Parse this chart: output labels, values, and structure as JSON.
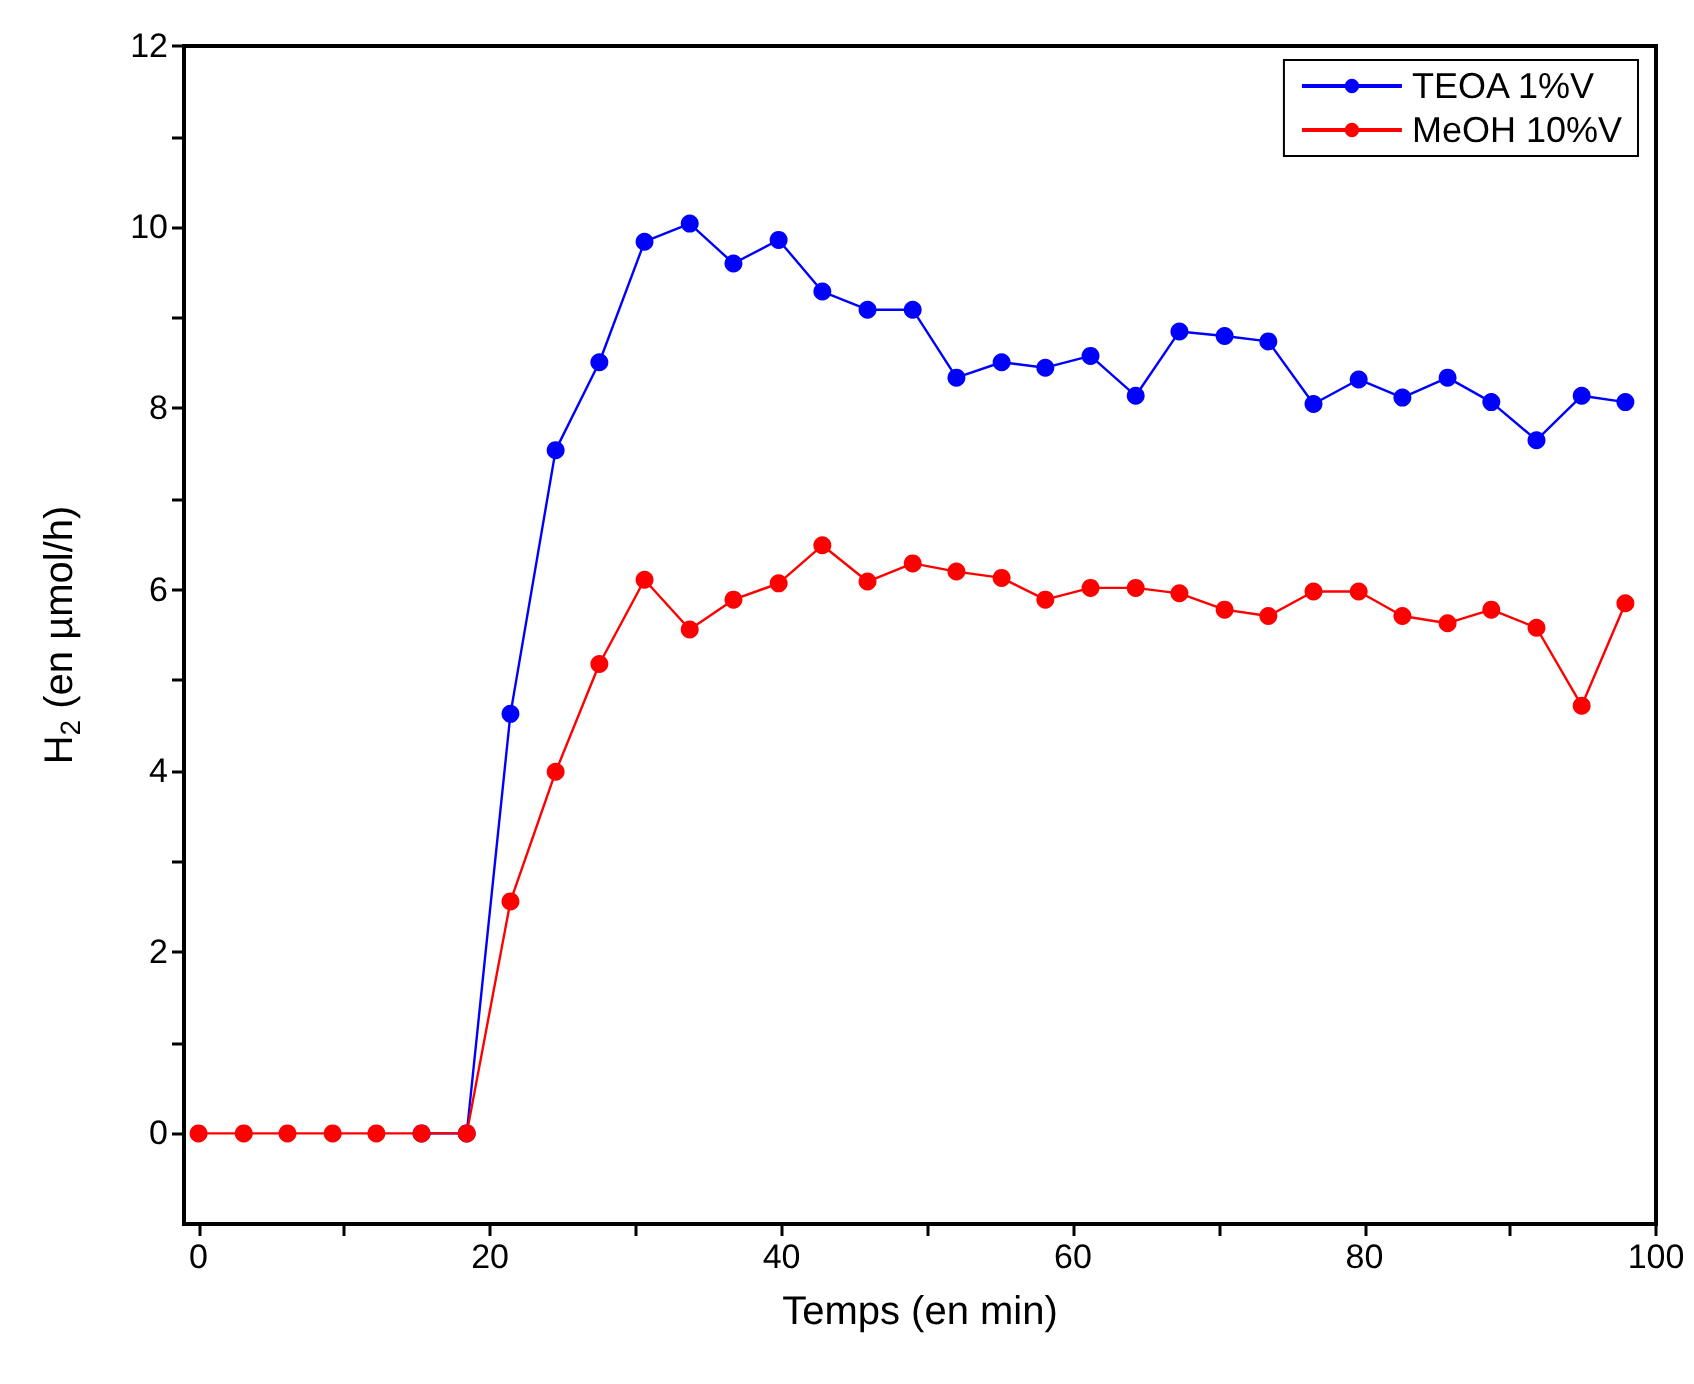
{
  "chart_data": {
    "type": "line",
    "xlabel": "Temps (en min)",
    "ylabel": "H$_{2}$ (en µmol/h)",
    "x": [
      0,
      3.1,
      6.1,
      9.2,
      12.2,
      15.3,
      18.4,
      21.4,
      24.5,
      27.5,
      30.6,
      33.7,
      36.7,
      39.8,
      42.8,
      45.9,
      49.0,
      52.0,
      55.1,
      58.1,
      61.2,
      64.3,
      67.3,
      70.4,
      73.4,
      76.5,
      79.6,
      82.6,
      85.7,
      88.7,
      91.8,
      94.9,
      97.9
    ],
    "series": [
      {
        "name": "TEOA 1%V",
        "color": "#0000ff",
        "values": [
          null,
          null,
          null,
          null,
          null,
          0,
          0,
          4.63,
          7.54,
          8.51,
          9.84,
          10.04,
          9.6,
          9.86,
          9.29,
          9.09,
          9.09,
          8.34,
          8.51,
          8.45,
          8.58,
          8.14,
          8.85,
          8.8,
          8.74,
          8.05,
          8.32,
          8.12,
          8.34,
          8.07,
          7.65,
          8.14,
          8.07
        ]
      },
      {
        "name": "MeOH 10%V",
        "color": "#ff0000",
        "values": [
          0,
          0,
          0,
          0,
          0,
          0,
          0,
          2.56,
          3.99,
          5.18,
          6.11,
          5.56,
          5.89,
          6.07,
          6.49,
          6.09,
          6.29,
          6.2,
          6.13,
          5.89,
          6.02,
          6.02,
          5.96,
          5.78,
          5.71,
          5.98,
          5.98,
          5.71,
          5.63,
          5.78,
          5.58,
          4.72,
          5.85
        ]
      }
    ],
    "xlim": [
      -1,
      100
    ],
    "ylim": [
      -1,
      12
    ],
    "xticks": [
      0,
      {
        "value": 10,
        "label": null
      },
      20,
      {
        "value": 30,
        "label": null
      },
      40,
      {
        "value": 50,
        "label": null
      },
      60,
      {
        "value": 70,
        "label": null
      },
      80,
      {
        "value": 90,
        "label": null
      },
      100
    ],
    "yticks": [
      0,
      {
        "value": 1,
        "label": null
      },
      2,
      {
        "value": 3,
        "label": null
      },
      4,
      {
        "value": 5,
        "label": null
      },
      6,
      {
        "value": 7,
        "label": null
      },
      8,
      {
        "value": 9,
        "label": null
      },
      10,
      {
        "value": 11,
        "label": null
      },
      12
    ],
    "grid": false,
    "legend": "top right",
    "marker": "circle",
    "line_style": "solid"
  }
}
